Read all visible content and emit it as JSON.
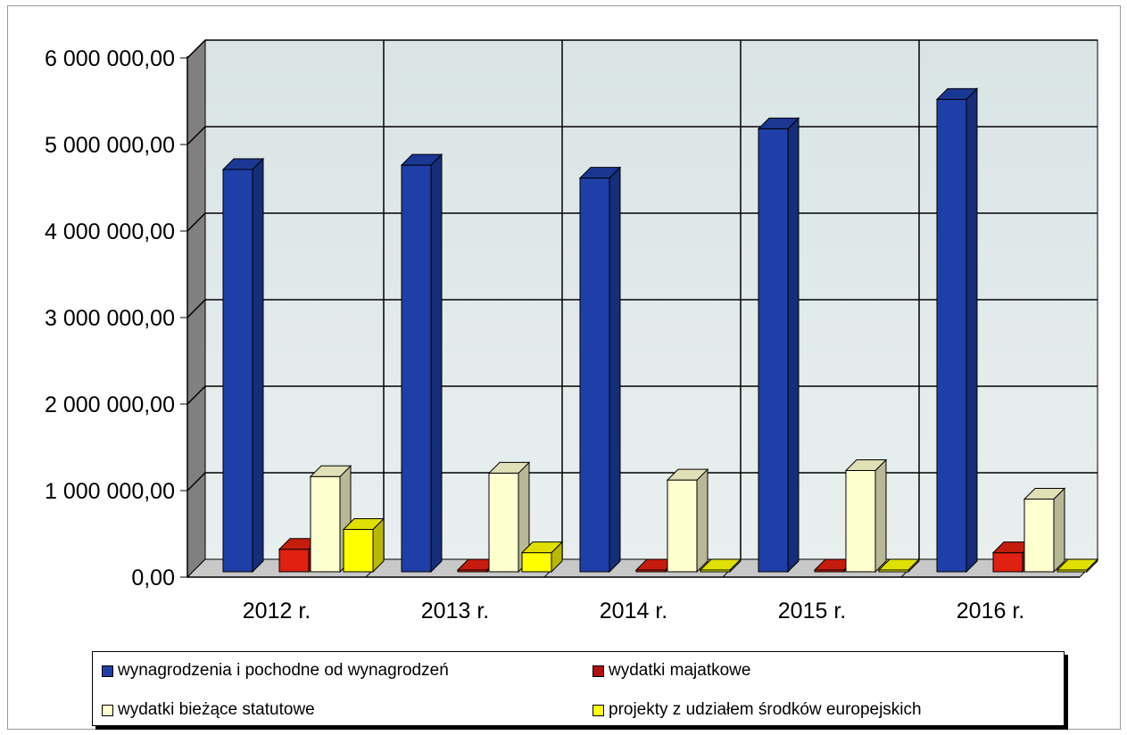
{
  "chart_data": {
    "type": "bar",
    "categories": [
      "2012 r.",
      "2013 r.",
      "2014 r.",
      "2015 r.",
      "2016 r."
    ],
    "series": [
      {
        "name": "wynagrodzenia i pochodne od wynagrodzeń",
        "values": [
          4650000,
          4700000,
          4550000,
          5120000,
          5460000
        ],
        "color": "#1f3fa8"
      },
      {
        "name": "wydatki majatkowe",
        "values": [
          260000,
          8000,
          8000,
          8000,
          220000
        ],
        "color": "#e02010"
      },
      {
        "name": "wydatki bieżące statutowe",
        "values": [
          1100000,
          1140000,
          1060000,
          1170000,
          840000
        ],
        "color": "#ffffd0"
      },
      {
        "name": "projekty z udziałem środków europejskich",
        "values": [
          490000,
          220000,
          20000,
          10000,
          5000
        ],
        "color": "#ffff00"
      }
    ],
    "yticks": [
      "0,00",
      "1 000 000,00",
      "2 000 000,00",
      "3 000 000,00",
      "4 000 000,00",
      "5 000 000,00",
      "6 000 000,00"
    ],
    "ylim": [
      0,
      6000000
    ],
    "grid": true,
    "legend": "bottom",
    "title": "",
    "xlabel": "",
    "ylabel": ""
  }
}
